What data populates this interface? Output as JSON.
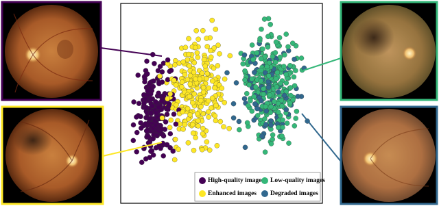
{
  "legend": {
    "items": [
      {
        "label": "High-quality images"
      },
      {
        "label": "Low-quality images"
      },
      {
        "label": "Enhanced images"
      },
      {
        "label": "Degraded images"
      }
    ]
  }
}
